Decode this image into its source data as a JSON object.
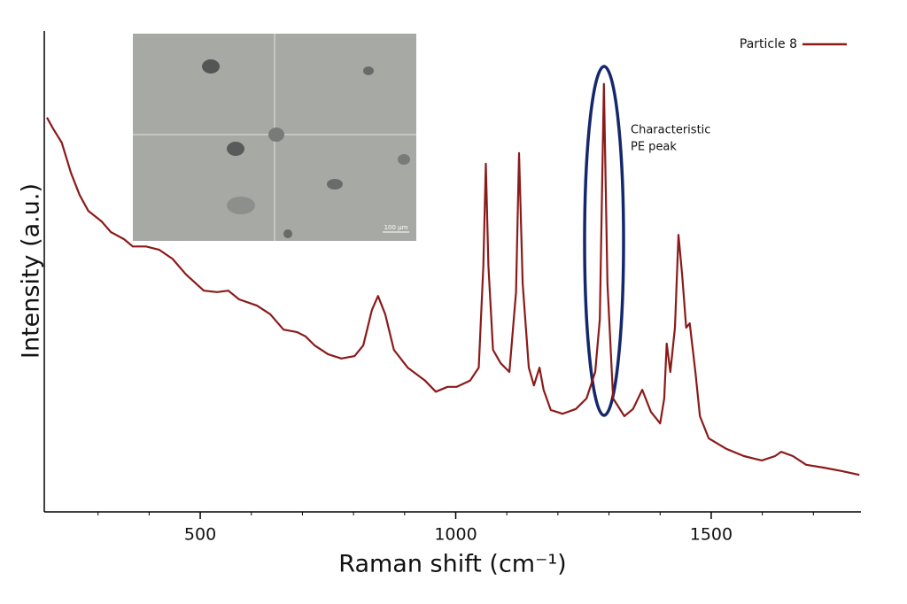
{
  "chart_data": {
    "type": "line",
    "xlabel": "Raman shift (cm⁻¹)",
    "ylabel": "Intensity (a.u.)",
    "xlim": [
      200,
      1800
    ],
    "ylim": [
      0,
      100
    ],
    "xticks": [
      500,
      1000,
      1500
    ],
    "xminorticks": [
      300,
      400,
      600,
      700,
      800,
      900,
      1100,
      1200,
      1300,
      1400,
      1600,
      1700
    ],
    "legend": "upper right",
    "annotations": [
      "Characteristic",
      "PE peak"
    ],
    "inset_scale_label": "100 µm",
    "series": [
      {
        "name": "Particle 8",
        "color": "#8b1a1a",
        "x": [
          200,
          212,
          229,
          247,
          264,
          281,
          307,
          325,
          351,
          368,
          394,
          420,
          446,
          472,
          507,
          533,
          555,
          576,
          611,
          637,
          663,
          689,
          706,
          724,
          750,
          776,
          802,
          819,
          836,
          848,
          862,
          879,
          906,
          940,
          961,
          984,
          1002,
          1028,
          1045,
          1054,
          1059,
          1064,
          1073,
          1088,
          1105,
          1118,
          1124,
          1131,
          1143,
          1153,
          1164,
          1172,
          1186,
          1209,
          1235,
          1256,
          1273,
          1282,
          1290,
          1297,
          1308,
          1330,
          1347,
          1365,
          1382,
          1400,
          1408,
          1413,
          1420,
          1429,
          1436,
          1443,
          1451,
          1458,
          1469,
          1478,
          1495,
          1530,
          1564,
          1599,
          1625,
          1637,
          1660,
          1686,
          1720,
          1755,
          1790
        ],
        "values": [
          82.0,
          79.7,
          76.8,
          70.5,
          65.9,
          62.6,
          60.4,
          58.2,
          56.7,
          55.2,
          55.2,
          54.5,
          52.6,
          49.4,
          46.0,
          45.7,
          46.0,
          44.2,
          42.9,
          41.1,
          37.9,
          37.4,
          36.5,
          34.6,
          32.8,
          31.9,
          32.4,
          34.6,
          42.0,
          44.9,
          41.1,
          33.7,
          30.0,
          27.3,
          25.0,
          26.0,
          26.0,
          27.3,
          30.0,
          51.2,
          72.4,
          51.2,
          33.7,
          30.9,
          29.1,
          45.7,
          74.6,
          47.5,
          30.0,
          26.3,
          30.0,
          25.4,
          21.2,
          20.4,
          21.4,
          23.6,
          29.1,
          40.1,
          89.0,
          47.5,
          23.6,
          19.9,
          21.4,
          25.4,
          20.8,
          18.4,
          23.6,
          35.0,
          29.1,
          38.3,
          57.6,
          49.4,
          38.3,
          39.2,
          29.1,
          19.9,
          15.3,
          13.1,
          11.6,
          10.7,
          11.6,
          12.5,
          11.6,
          9.8,
          9.2,
          8.5,
          7.7
        ]
      }
    ]
  }
}
